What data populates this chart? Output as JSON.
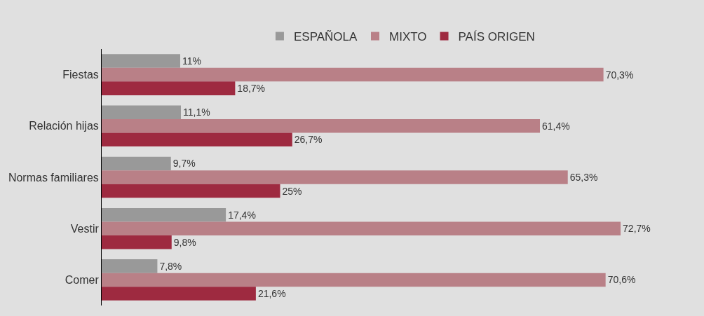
{
  "chart_data": {
    "type": "bar",
    "orientation": "horizontal",
    "legend": "top",
    "categories": [
      "Fiestas",
      "Relación hijas",
      "Normas familiares",
      "Vestir",
      "Comer"
    ],
    "series": [
      {
        "name": "ESPAÑOLA",
        "color": "#999999",
        "values": [
          11,
          11.1,
          9.7,
          17.4,
          7.8
        ],
        "value_labels": [
          "11%",
          "11,1%",
          "9,7%",
          "17,4%",
          "7,8%"
        ]
      },
      {
        "name": "MIXTO",
        "color": "#b98087",
        "values": [
          70.3,
          61.4,
          65.3,
          72.7,
          70.6
        ],
        "value_labels": [
          "70,3%",
          "61,4%",
          "65,3%",
          "72,7%",
          "70,6%"
        ]
      },
      {
        "name": "PAÍS ORIGEN",
        "color": "#9e2a40",
        "values": [
          18.7,
          26.7,
          25,
          9.8,
          21.6
        ],
        "value_labels": [
          "18,7%",
          "26,7%",
          "25%",
          "9,8%",
          "21,6%"
        ]
      }
    ]
  }
}
